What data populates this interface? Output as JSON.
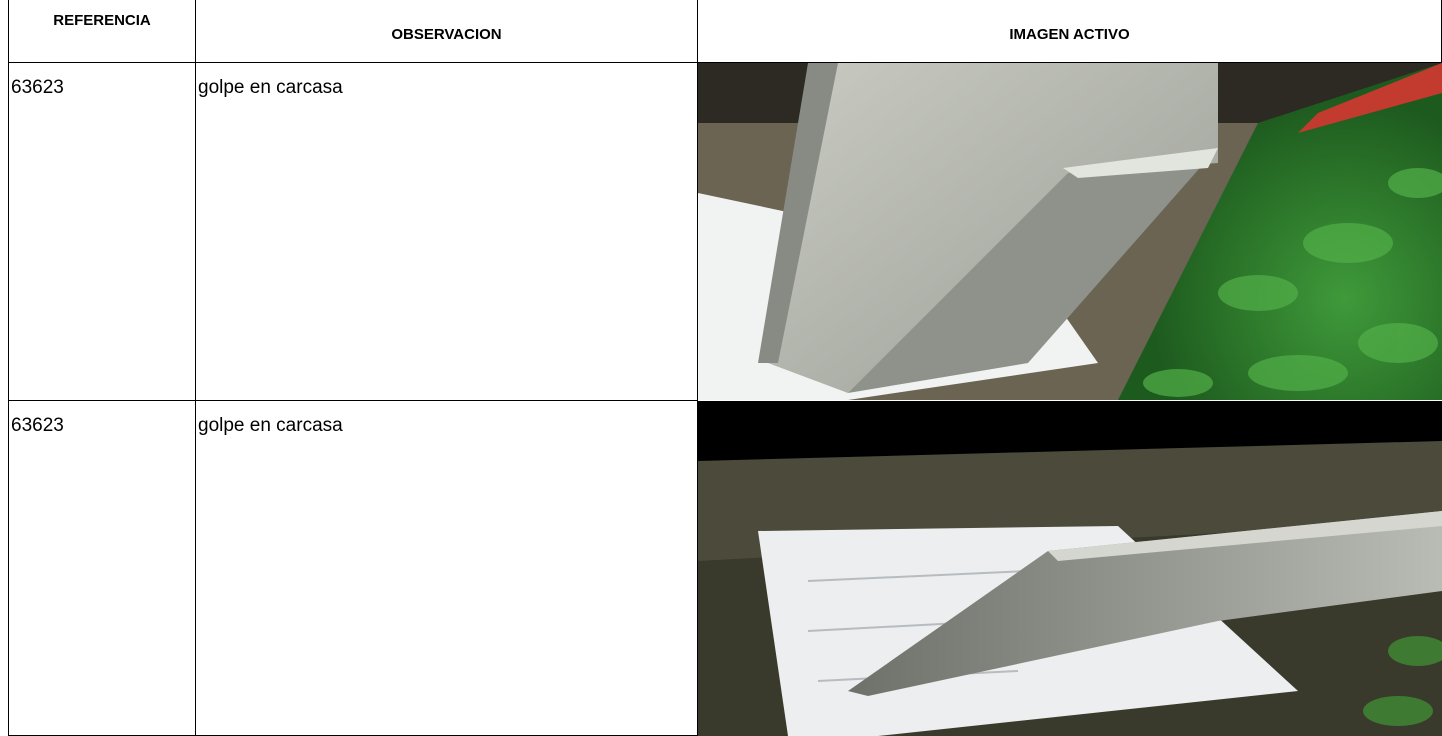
{
  "table": {
    "headers": [
      "REFERENCIA",
      "OBSERVACION",
      "IMAGEN ACTIVO"
    ],
    "rows": [
      [
        "63623",
        "golpe en carcasa"
      ],
      [
        "63623",
        "golpe en carcasa"
      ]
    ]
  }
}
